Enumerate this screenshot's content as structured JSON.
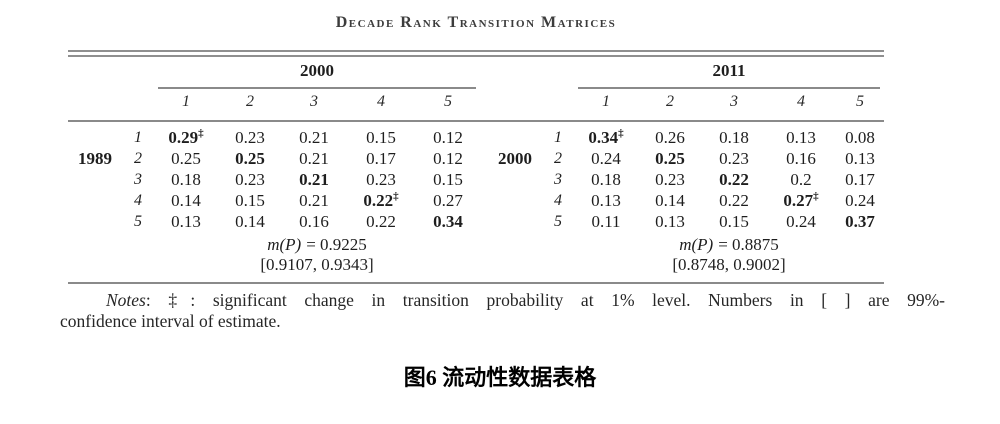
{
  "title": "Decade Rank Transition Matrices",
  "dagger": "‡",
  "chart_data": {
    "type": "table",
    "title": "Decade Rank Transition Matrices",
    "matrices": [
      {
        "col_year": "2000",
        "row_year": "1989",
        "col_headers": [
          "1",
          "2",
          "3",
          "4",
          "5"
        ],
        "row_headers": [
          "1",
          "2",
          "3",
          "4",
          "5"
        ],
        "values": [
          [
            0.29,
            0.23,
            0.21,
            0.15,
            0.12
          ],
          [
            0.25,
            0.25,
            0.21,
            0.17,
            0.12
          ],
          [
            0.18,
            0.23,
            0.21,
            0.23,
            0.15
          ],
          [
            0.14,
            0.15,
            0.21,
            0.22,
            0.27
          ],
          [
            0.13,
            0.14,
            0.16,
            0.22,
            0.34
          ]
        ],
        "mobility": 0.9225,
        "confidence_interval": [
          0.9107,
          0.9343
        ]
      },
      {
        "col_year": "2011",
        "row_year": "2000",
        "col_headers": [
          "1",
          "2",
          "3",
          "4",
          "5"
        ],
        "row_headers": [
          "1",
          "2",
          "3",
          "4",
          "5"
        ],
        "values": [
          [
            0.34,
            0.26,
            0.18,
            0.13,
            0.08
          ],
          [
            0.24,
            0.25,
            0.23,
            0.16,
            0.13
          ],
          [
            0.18,
            0.23,
            0.22,
            0.2,
            0.17
          ],
          [
            0.13,
            0.14,
            0.22,
            0.27,
            0.24
          ],
          [
            0.11,
            0.13,
            0.15,
            0.24,
            0.37
          ]
        ],
        "mobility": 0.8875,
        "confidence_interval": [
          0.8748,
          0.9002
        ]
      }
    ]
  },
  "left": {
    "year": "2000",
    "era": "1989",
    "cols": [
      "1",
      "2",
      "3",
      "4",
      "5"
    ],
    "nums": [
      "1",
      "2",
      "3",
      "4",
      "5"
    ],
    "rows": [
      [
        "0.29",
        "0.23",
        "0.21",
        "0.15",
        "0.12"
      ],
      [
        "0.25",
        "0.25",
        "0.21",
        "0.17",
        "0.12"
      ],
      [
        "0.18",
        "0.23",
        "0.21",
        "0.23",
        "0.15"
      ],
      [
        "0.14",
        "0.15",
        "0.21",
        "0.22",
        "0.27"
      ],
      [
        "0.13",
        "0.14",
        "0.16",
        "0.22",
        "0.34"
      ]
    ],
    "mp_label": "m(P)",
    "mp_value": "= 0.9225",
    "ci": "[0.9107, 0.9343]"
  },
  "right": {
    "year": "2011",
    "era": "2000",
    "cols": [
      "1",
      "2",
      "3",
      "4",
      "5"
    ],
    "nums": [
      "1",
      "2",
      "3",
      "4",
      "5"
    ],
    "rows": [
      [
        "0.34",
        "0.26",
        "0.18",
        "0.13",
        "0.08"
      ],
      [
        "0.24",
        "0.25",
        "0.23",
        "0.16",
        "0.13"
      ],
      [
        "0.18",
        "0.23",
        "0.22",
        "0.2",
        "0.17"
      ],
      [
        "0.13",
        "0.14",
        "0.22",
        "0.27",
        "0.24"
      ],
      [
        "0.11",
        "0.13",
        "0.15",
        "0.24",
        "0.37"
      ]
    ],
    "mp_label": "m(P)",
    "mp_value": "= 0.8875",
    "ci": "[0.8748, 0.9002]"
  },
  "notes": {
    "label": "Notes",
    "line1_rest": ": ‡: significant change in transition probability at 1% level. Numbers in [ ] are 99%-",
    "line2": "confidence interval of estimate."
  },
  "caption": "图6 流动性数据表格"
}
